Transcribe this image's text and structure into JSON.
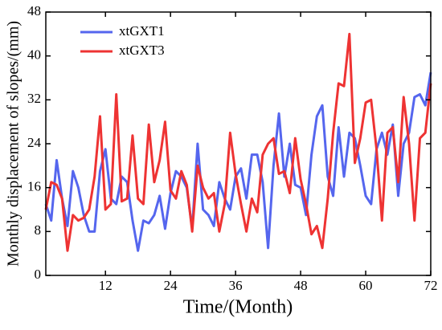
{
  "chart_data": {
    "type": "line",
    "xlabel": "Time/(Month)",
    "ylabel": "Monthly displacement of slopes/(mm)",
    "x": [
      1,
      2,
      3,
      4,
      5,
      6,
      7,
      8,
      9,
      10,
      11,
      12,
      13,
      14,
      15,
      16,
      17,
      18,
      19,
      20,
      21,
      22,
      23,
      24,
      25,
      26,
      27,
      28,
      29,
      30,
      31,
      32,
      33,
      34,
      35,
      36,
      37,
      38,
      39,
      40,
      41,
      42,
      43,
      44,
      45,
      46,
      47,
      48,
      49,
      50,
      51,
      52,
      53,
      54,
      55,
      56,
      57,
      58,
      59,
      60,
      61,
      62,
      63,
      64,
      65,
      66,
      67,
      68,
      69,
      70,
      71,
      72
    ],
    "series": [
      {
        "name": "xtGXT1",
        "color": "#5566ee",
        "values": [
          13,
          10,
          21,
          14,
          9,
          19,
          16,
          11,
          8,
          8,
          19,
          23,
          14,
          13,
          18,
          17,
          10,
          4.5,
          10,
          9.5,
          11,
          14.5,
          8.5,
          15,
          19,
          18,
          16,
          8.5,
          24,
          12,
          11,
          9,
          17,
          14,
          12,
          18,
          19.5,
          14,
          22,
          22,
          17,
          5,
          20,
          29.5,
          18,
          24,
          16.5,
          16,
          11,
          22,
          29,
          31,
          18,
          14.5,
          27,
          18,
          26,
          25,
          20,
          14.5,
          13,
          23,
          26,
          22,
          27.5,
          14.5,
          24,
          26,
          32.5,
          33,
          31,
          37
        ]
      },
      {
        "name": "xtGXT3",
        "color": "#ee3333",
        "values": [
          12,
          17,
          16.5,
          14,
          4.5,
          11,
          10,
          10.5,
          12,
          18,
          29,
          12,
          13,
          33,
          13.5,
          14,
          25.5,
          14,
          13,
          27.5,
          17,
          21,
          28,
          15.5,
          14,
          19,
          16.5,
          8,
          20,
          16,
          14,
          15,
          8,
          13,
          26,
          18.5,
          13,
          8,
          14,
          11.5,
          22,
          24,
          25,
          18.5,
          19,
          15,
          25,
          17.5,
          13,
          7.5,
          9,
          5,
          14,
          26,
          35,
          34.5,
          44,
          20.5,
          25,
          31.5,
          32,
          23,
          10,
          26,
          27,
          17,
          32.5,
          24,
          10,
          25,
          26,
          35
        ]
      }
    ],
    "xlim": [
      1,
      72
    ],
    "xticks": [
      12,
      24,
      36,
      48,
      60,
      72
    ],
    "ylim": [
      0,
      48
    ],
    "yticks": [
      0,
      8,
      16,
      24,
      32,
      40,
      48
    ],
    "legend": "upper left"
  }
}
